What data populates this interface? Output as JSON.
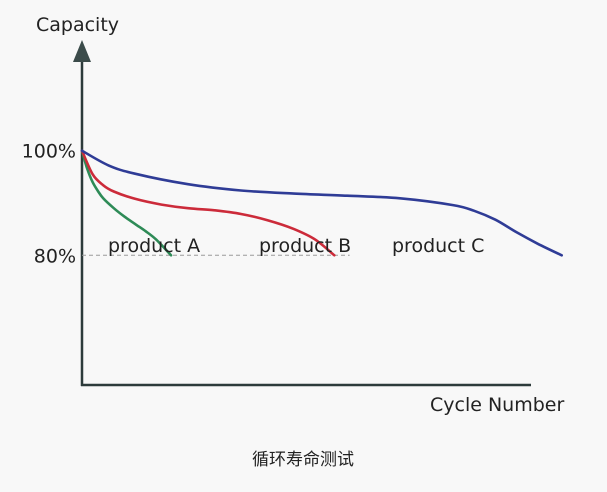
{
  "chart_data": {
    "type": "line",
    "title": "",
    "caption": "循环寿命测试",
    "xlabel": "Cycle Number",
    "ylabel": "Capacity",
    "yticks": [
      {
        "value": 100,
        "label": "100%"
      },
      {
        "value": 80,
        "label": "80%"
      }
    ],
    "threshold": {
      "value": 80,
      "style": "dashed"
    },
    "series": [
      {
        "name": "product A",
        "color": "#2e8b57",
        "x": [
          0,
          1,
          2,
          3,
          4,
          6,
          8,
          10,
          12,
          14,
          16.8
        ],
        "y": [
          100,
          96.5,
          94,
          92.3,
          90.9,
          89.0,
          87.4,
          86.0,
          84.6,
          83.0,
          80
        ]
      },
      {
        "name": "product B",
        "color": "#cc2b3a",
        "x": [
          0,
          2,
          4,
          6,
          10,
          15,
          20,
          25,
          30,
          35,
          40,
          44,
          47.6
        ],
        "y": [
          100,
          95.5,
          93.4,
          92.2,
          90.8,
          89.7,
          89.0,
          88.6,
          87.9,
          86.7,
          85.0,
          83.0,
          80
        ]
      },
      {
        "name": "product C",
        "color": "#2f3c96",
        "x": [
          0,
          5,
          10,
          20,
          30,
          40,
          50,
          60,
          70,
          74,
          78,
          82,
          86,
          90.5
        ],
        "y": [
          100,
          97.2,
          95.6,
          93.6,
          92.4,
          91.8,
          91.4,
          90.9,
          89.6,
          88.5,
          86.8,
          84.4,
          82.2,
          80
        ]
      }
    ],
    "xlim": [
      0,
      100
    ],
    "ylim": [
      55,
      125
    ],
    "grid": false,
    "legend": "labels-under-curve-ends"
  }
}
